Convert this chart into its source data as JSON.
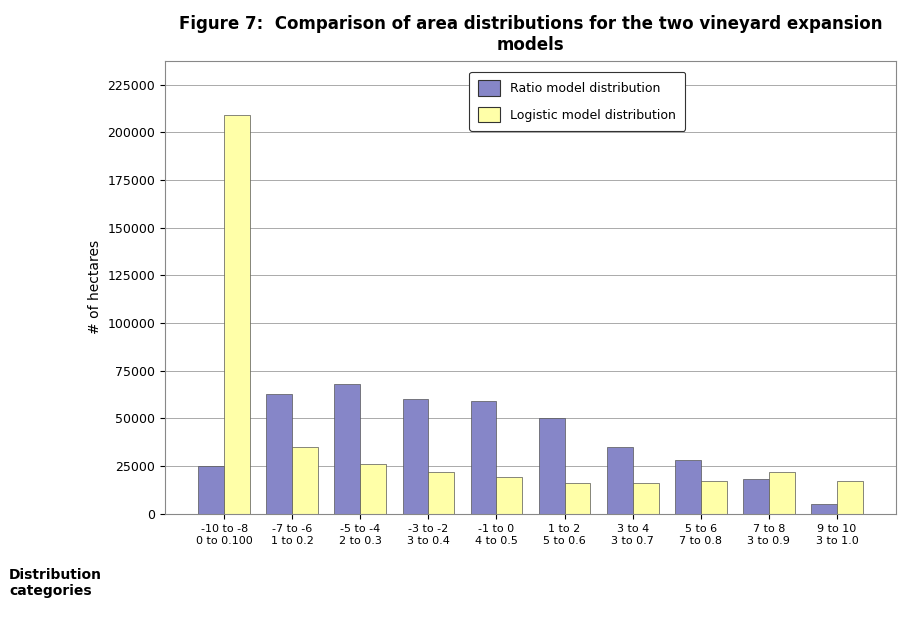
{
  "title": "Figure 7:  Comparison of area distributions for the two vineyard expansion\nmodels",
  "ylabel": "# of hectares",
  "xlabel_label": "Distribution\ncategories",
  "categories_line1": [
    "-10 to -8",
    "-7 to -6",
    "-5 to -4",
    "-3 to -2",
    "-1 to 0",
    "1 to 2",
    "3 to 4",
    "5 to 6",
    "7 to 8",
    "9 to 10"
  ],
  "categories_line2": [
    "0 to 0.100",
    "1 to 0.2",
    "2 to 0.3",
    "3 to 0.4",
    "4 to 0.5",
    "5 to 0.6",
    "3 to 0.7",
    "7 to 0.8",
    "3 to 0.9",
    "3 to 1.0"
  ],
  "ratio_values": [
    25000,
    63000,
    68000,
    60000,
    59000,
    50000,
    35000,
    28000,
    18000,
    5000
  ],
  "logistic_values": [
    209000,
    35000,
    26000,
    22000,
    19000,
    16000,
    16000,
    17000,
    22000,
    17000
  ],
  "ratio_color": "#8686c8",
  "logistic_color": "#ffffa8",
  "ratio_label": "Ratio model distribution",
  "logistic_label": "Logistic model distribution",
  "ylim": [
    0,
    237500
  ],
  "yticks": [
    0,
    25000,
    50000,
    75000,
    100000,
    125000,
    150000,
    175000,
    200000,
    225000
  ],
  "background_color": "#ffffff",
  "title_fontsize": 12,
  "axis_label_fontsize": 10,
  "tick_fontsize": 9,
  "legend_fontsize": 9
}
